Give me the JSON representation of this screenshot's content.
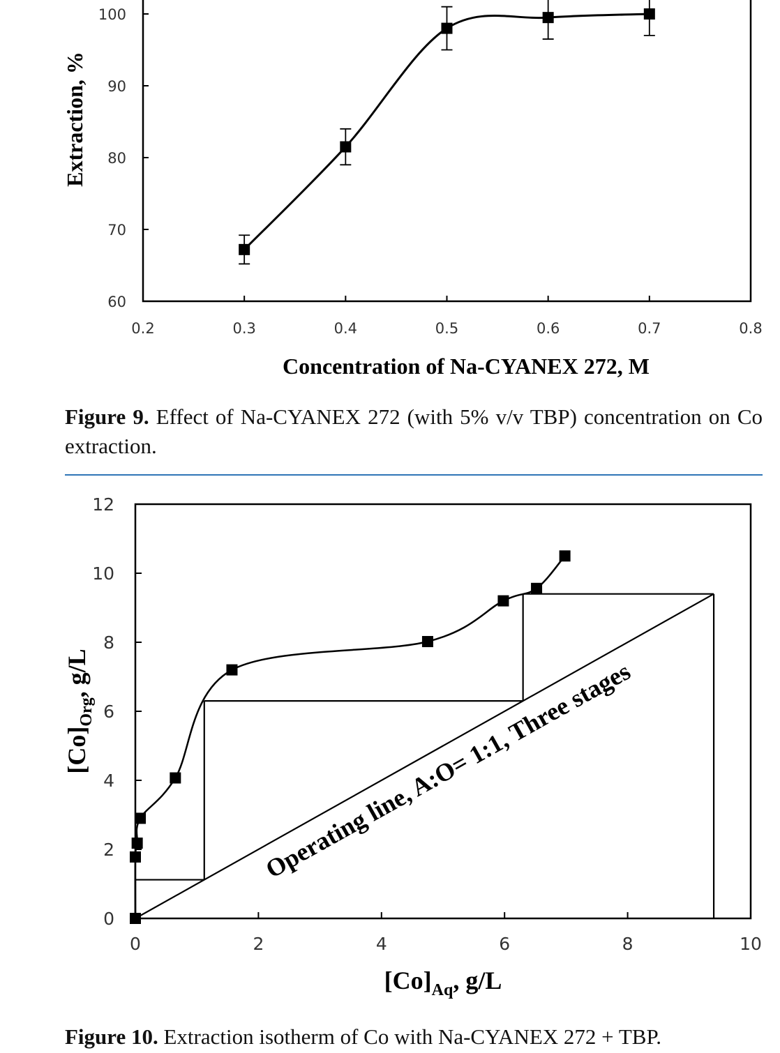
{
  "figure9": {
    "caption_label": "Figure 9.",
    "caption_text": "Effect of Na-CYANEX 272 (with 5% v/v TBP) concentration on Co extraction."
  },
  "figure10": {
    "caption_label": "Figure 10.",
    "caption_text": "Extraction isotherm of Co with Na-CYANEX 272 + TBP.",
    "annotation": "Operating line, A:O= 1:1, Three stages"
  },
  "colors": {
    "divider": "#2e75b6",
    "ink": "#000000"
  },
  "chart_data": [
    {
      "type": "line",
      "title": "",
      "xlabel": "Concentration  of Na-CYANEX  272, M",
      "ylabel": "Extraction, %",
      "xlim": [
        0.2,
        0.8
      ],
      "ylim": [
        60,
        100
      ],
      "xticks": [
        "0.2",
        "0.3",
        "0.4",
        "0.5",
        "0.6",
        "0.7",
        "0.8"
      ],
      "yticks": [
        "60",
        "70",
        "80",
        "90",
        "100"
      ],
      "grid": false,
      "smooth": true,
      "series": [
        {
          "x": [
            0.3,
            0.4,
            0.5,
            0.6,
            0.7
          ],
          "y": [
            67.2,
            81.5,
            98.0,
            99.5,
            100.0
          ],
          "error": [
            2.0,
            2.5,
            3.0,
            3.0,
            3.0
          ]
        }
      ]
    },
    {
      "type": "line",
      "title": "",
      "xlabel": "[Co]",
      "xlabel_sub": "Aq",
      "xlabel_tail": ", g/L",
      "ylabel": "[Co]",
      "ylabel_sub": "Org",
      "ylabel_tail": ", g/L",
      "xlim": [
        0,
        10
      ],
      "ylim": [
        0,
        12
      ],
      "xticks": [
        "0",
        "2",
        "4",
        "6",
        "8",
        "10"
      ],
      "yticks": [
        "0",
        "2",
        "4",
        "6",
        "8",
        "10",
        "12"
      ],
      "grid": false,
      "series": [
        {
          "smooth": true,
          "x": [
            0.0,
            0.0,
            0.03,
            0.08,
            0.65,
            1.57,
            4.75,
            5.98,
            6.52,
            6.98
          ],
          "y": [
            0.0,
            1.78,
            2.18,
            2.9,
            4.07,
            7.2,
            8.02,
            9.2,
            9.56,
            10.5
          ]
        }
      ],
      "operating_line": {
        "x": [
          0,
          9.4
        ],
        "y": [
          0,
          9.4
        ]
      },
      "stages": [
        {
          "x": [
            9.4,
            6.3
          ],
          "y": [
            9.4,
            9.4
          ]
        },
        {
          "x": [
            6.3,
            6.3
          ],
          "y": [
            9.4,
            6.3
          ]
        },
        {
          "x": [
            6.3,
            1.12
          ],
          "y": [
            6.3,
            6.3
          ]
        },
        {
          "x": [
            1.12,
            1.12
          ],
          "y": [
            6.3,
            1.12
          ]
        },
        {
          "x": [
            1.12,
            0.0
          ],
          "y": [
            1.12,
            1.12
          ]
        },
        {
          "x": [
            0.0,
            0.0
          ],
          "y": [
            1.12,
            0.0
          ]
        },
        {
          "x": [
            9.4,
            9.4
          ],
          "y": [
            9.4,
            0.0
          ]
        }
      ]
    }
  ]
}
